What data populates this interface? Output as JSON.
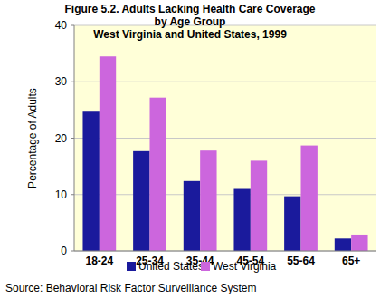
{
  "chart_data": {
    "type": "bar",
    "title": "Figure 5.2. Adults Lacking Health Care Coverage by Age Group",
    "subtitle": "West Virginia and United States, 1999",
    "y_label": "Percentage of Adults",
    "source": "Source: Behavioral Risk Factor Surveillance System",
    "categories": [
      "18-24",
      "25-34",
      "35-44",
      "45-54",
      "55-64",
      "65+"
    ],
    "series": [
      {
        "name": "United States",
        "color": "#1a1a9c",
        "values": [
          24.7,
          17.7,
          12.4,
          11.0,
          9.7,
          2.2
        ]
      },
      {
        "name": "West Virginia",
        "color": "#cc66dd",
        "values": [
          34.5,
          27.2,
          17.8,
          16.0,
          18.7,
          2.9
        ]
      }
    ],
    "ylim": [
      0,
      40
    ],
    "yticks": [
      0,
      10,
      20,
      30,
      40
    ],
    "grid": true,
    "legend": "bottom"
  }
}
